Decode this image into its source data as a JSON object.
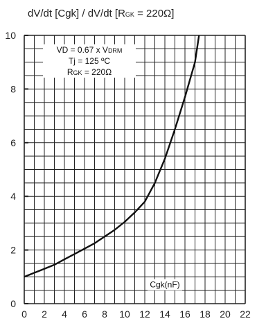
{
  "chart_data": {
    "type": "line",
    "title": "dV/dt [Cgk] / dV/dt [RGK = 220Ω]",
    "title_parts": {
      "prefix": "dV/dt [Cgk] / dV/dt [R",
      "sub": "GK",
      "suffix": " = 220Ω]"
    },
    "xlabel": "Cgk(nF)",
    "ylabel": "",
    "xlim": [
      0,
      22
    ],
    "ylim": [
      0,
      10
    ],
    "x_ticks": [
      0,
      2,
      4,
      6,
      8,
      10,
      12,
      14,
      16,
      18,
      20,
      22
    ],
    "y_ticks": [
      0,
      2,
      4,
      6,
      8,
      10
    ],
    "grid": true,
    "annotation": {
      "line1": {
        "prefix": "VD = 0.67 x V",
        "sub": "DRM",
        "suffix": ""
      },
      "line2": {
        "prefix": "Tj = 125 ºC",
        "sub": "",
        "suffix": ""
      },
      "line3": {
        "prefix": "R",
        "sub": "GK",
        "suffix": " = 220Ω"
      }
    },
    "series": [
      {
        "x": [
          0,
          1,
          2,
          3,
          4,
          5,
          6,
          7,
          8,
          9,
          10,
          11,
          12,
          13,
          14,
          15,
          16,
          17,
          17.4
        ],
        "y": [
          1.0,
          1.15,
          1.3,
          1.45,
          1.65,
          1.85,
          2.05,
          2.25,
          2.5,
          2.75,
          3.05,
          3.4,
          3.8,
          4.5,
          5.4,
          6.5,
          7.7,
          9.0,
          10.0
        ]
      }
    ],
    "colors": {
      "line": "#111111",
      "grid": "#222222",
      "text": "#222222"
    }
  }
}
